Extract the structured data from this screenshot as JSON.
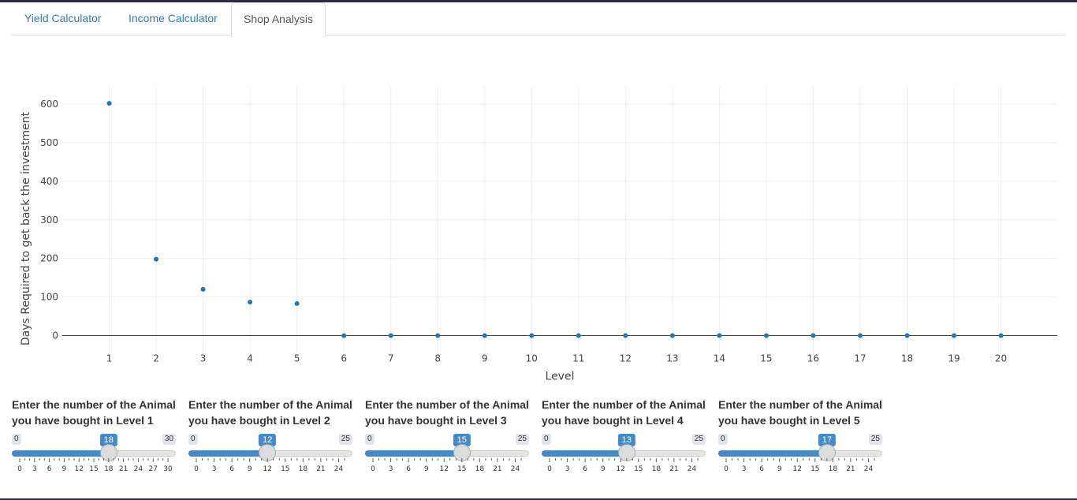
{
  "tabs": [
    {
      "label": "Yield Calculator",
      "active": false
    },
    {
      "label": "Income Calculator",
      "active": false
    },
    {
      "label": "Shop Analysis",
      "active": true
    }
  ],
  "chart_data": {
    "type": "scatter",
    "x": [
      1,
      2,
      3,
      4,
      5,
      6,
      7,
      8,
      9,
      10,
      11,
      12,
      13,
      14,
      15,
      16,
      17,
      18,
      19,
      20
    ],
    "y": [
      602,
      198,
      120,
      87,
      83,
      0,
      0,
      0,
      0,
      0,
      0,
      0,
      0,
      0,
      0,
      0,
      0,
      0,
      0,
      0
    ],
    "xlabel": "Level",
    "ylabel": "Days Required to get back the investment",
    "xlim": [
      0,
      21.2
    ],
    "ylim": [
      -50,
      645
    ],
    "y_ticks": [
      0,
      100,
      200,
      300,
      400,
      500,
      600
    ],
    "x_ticks": [
      1,
      2,
      3,
      4,
      5,
      6,
      7,
      8,
      9,
      10,
      11,
      12,
      13,
      14,
      15,
      16,
      17,
      18,
      19,
      20
    ],
    "grid": true,
    "marker_color": "#1f77b4"
  },
  "sliders": [
    {
      "label": "Enter the number of the Animal you have bought in Level 1",
      "min": 0,
      "max": 30,
      "value": 18,
      "step_labels": [
        0,
        3,
        6,
        9,
        12,
        15,
        18,
        21,
        24,
        27,
        30
      ]
    },
    {
      "label": "Enter the number of the Animal you have bought in Level 2",
      "min": 0,
      "max": 25,
      "value": 12,
      "step_labels": [
        0,
        3,
        6,
        9,
        12,
        15,
        18,
        21,
        24
      ]
    },
    {
      "label": "Enter the number of the Animal you have bought in Level 3",
      "min": 0,
      "max": 25,
      "value": 15,
      "step_labels": [
        0,
        3,
        6,
        9,
        12,
        15,
        18,
        21,
        24
      ]
    },
    {
      "label": "Enter the number of the Animal you have bought in Level 4",
      "min": 0,
      "max": 25,
      "value": 13,
      "step_labels": [
        0,
        3,
        6,
        9,
        12,
        15,
        18,
        21,
        24
      ]
    },
    {
      "label": "Enter the number of the Animal you have bought in Level 5",
      "min": 0,
      "max": 25,
      "value": 17,
      "step_labels": [
        0,
        3,
        6,
        9,
        12,
        15,
        18,
        21,
        24
      ]
    }
  ],
  "colors": {
    "accent": "#428bca",
    "link": "#337ab7",
    "marker": "#1f77b4"
  }
}
